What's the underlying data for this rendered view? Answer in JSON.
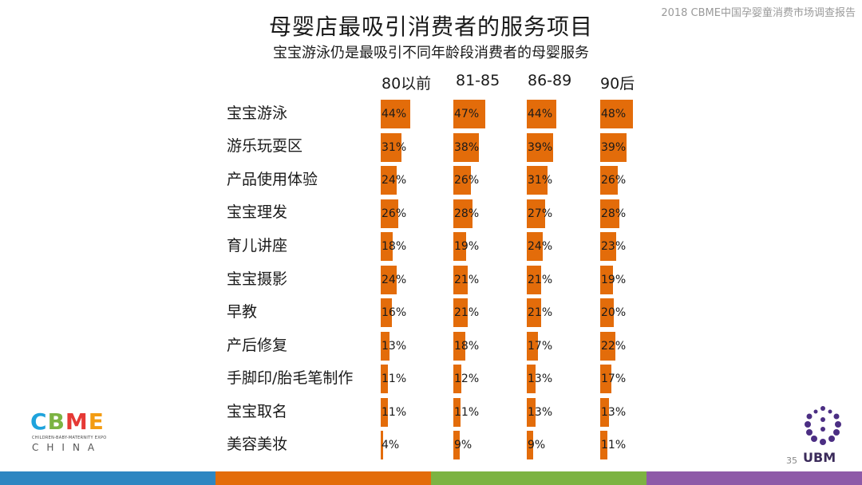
{
  "header": {
    "note": "2018 CBME中国孕婴童消费市场调查报告",
    "title": "母婴店最吸引消费者的服务项目",
    "subtitle": "宝宝游泳仍是最吸引不同年龄段消费者的母婴服务"
  },
  "chart_data": {
    "type": "bar",
    "orientation": "horizontal",
    "title": "母婴店最吸引消费者的服务项目",
    "subtitle": "宝宝游泳仍是最吸引不同年龄段消费者的母婴服务",
    "categories": [
      "宝宝游泳",
      "游乐玩耍区",
      "产品使用体验",
      "宝宝理发",
      "育儿讲座",
      "宝宝摄影",
      "早教",
      "产后修复",
      "手脚印/胎毛笔制作",
      "宝宝取名",
      "美容美妆"
    ],
    "series": [
      {
        "name": "80以前",
        "values": [
          44,
          31,
          24,
          26,
          18,
          24,
          16,
          13,
          11,
          11,
          4
        ],
        "labels": [
          "44%",
          "31%",
          "24%",
          "26%",
          "18%",
          "24%",
          "16%",
          "13%",
          "11%",
          "11%",
          "4%"
        ]
      },
      {
        "name": "81-85",
        "values": [
          47,
          38,
          26,
          28,
          19,
          21,
          21,
          18,
          12,
          11,
          9
        ],
        "labels": [
          "47%",
          "38%",
          "26%",
          "28%",
          "19%",
          "21%",
          "21%",
          "18%",
          "12%",
          "11%",
          "9%"
        ]
      },
      {
        "name": "86-89",
        "values": [
          44,
          39,
          31,
          27,
          24,
          21,
          21,
          17,
          13,
          13,
          9
        ],
        "labels": [
          "44%",
          "39%",
          "31%",
          "27%",
          "24%",
          "21%",
          "21%",
          "17%",
          "13%",
          "13%",
          "9%"
        ]
      },
      {
        "name": "90后",
        "values": [
          48,
          39,
          26,
          28,
          23,
          19,
          20,
          22,
          17,
          13,
          11
        ],
        "labels": [
          "48%",
          "39%",
          "26%",
          "28%",
          "23%",
          "19%",
          "20%",
          "22%",
          "17%",
          "13%",
          "11%"
        ]
      }
    ],
    "value_unit": "%",
    "bar_color": "#e36c0a",
    "grid": false,
    "legend": "none"
  },
  "logos": {
    "cbme": {
      "letters": "CBME",
      "tagline": "CHILDREN-BABY-MATERNITY EXPO",
      "sub": "CHINA",
      "colors": [
        "#1ea3dc",
        "#7cb342",
        "#e53935",
        "#f39c12"
      ]
    },
    "ubm": {
      "text": "UBM",
      "color": "#4b2e83"
    }
  },
  "page_number": "35",
  "footer_colors": [
    "#2e86c1",
    "#e36c0a",
    "#7cb342",
    "#8e5aa8"
  ]
}
